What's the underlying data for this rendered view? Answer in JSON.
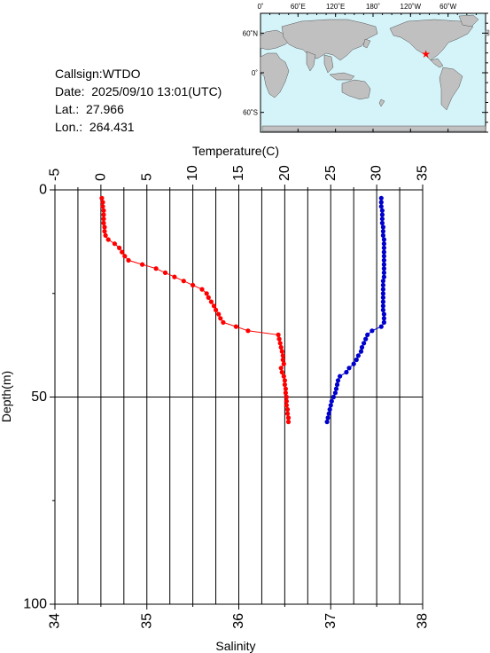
{
  "info": {
    "callsign_label": "Callsign:",
    "callsign": "WTDO",
    "date_label": "Date:",
    "date": "2025/09/10 13:01(UTC)",
    "lat_label": "Lat.:",
    "lat": "27.966",
    "lon_label": "Lon.:",
    "lon": "264.431"
  },
  "map": {
    "lon_ticks": [
      "0˚",
      "60˚E",
      "120˚E",
      "180˚",
      "120˚W",
      "60˚W"
    ],
    "lat_ticks": [
      "60˚N",
      "0˚",
      "60˚S"
    ],
    "ocean_color": "#d4f4fa",
    "land_color": "#c0c0c0",
    "marker_color": "#ff0000",
    "marker_icon": "star-icon",
    "marker_lon": 264.431,
    "marker_lat": 27.966
  },
  "chart_data": {
    "type": "line",
    "top_axis_label": "Temperature(C)",
    "bottom_axis_label": "Salinity",
    "left_axis_label": "Depth(m)",
    "temperature_ticks": [
      "-5",
      "0",
      "5",
      "10",
      "15",
      "20",
      "25",
      "30",
      "35"
    ],
    "salinity_ticks": [
      "34",
      "35",
      "36",
      "37",
      "38"
    ],
    "depth_ticks": [
      "0",
      "50",
      "100"
    ],
    "temperature_range": [
      -5,
      35
    ],
    "salinity_range": [
      34,
      38
    ],
    "depth_range": [
      0,
      100
    ],
    "grid": true,
    "series": [
      {
        "color": "#ff0000",
        "x_axis": "temperature",
        "points": [
          [
            0.1,
            2
          ],
          [
            0.2,
            3
          ],
          [
            0.2,
            4
          ],
          [
            0.3,
            5
          ],
          [
            0.3,
            6
          ],
          [
            0.3,
            7
          ],
          [
            0.3,
            8
          ],
          [
            0.4,
            9
          ],
          [
            0.4,
            10
          ],
          [
            0.5,
            11
          ],
          [
            0.8,
            12
          ],
          [
            1.5,
            13
          ],
          [
            2.0,
            14
          ],
          [
            2.3,
            15
          ],
          [
            2.6,
            16
          ],
          [
            3.0,
            17
          ],
          [
            4.5,
            18
          ],
          [
            6.0,
            19
          ],
          [
            7.0,
            20
          ],
          [
            8.0,
            21
          ],
          [
            9.0,
            22
          ],
          [
            10.0,
            23
          ],
          [
            11.0,
            24
          ],
          [
            11.5,
            25
          ],
          [
            11.7,
            26
          ],
          [
            12.0,
            27
          ],
          [
            12.3,
            28
          ],
          [
            12.5,
            29
          ],
          [
            12.8,
            30
          ],
          [
            13.0,
            31
          ],
          [
            13.3,
            32
          ],
          [
            14.7,
            33
          ],
          [
            16.0,
            34
          ],
          [
            19.3,
            35
          ],
          [
            19.4,
            36
          ],
          [
            19.5,
            37
          ],
          [
            19.6,
            38
          ],
          [
            19.7,
            39
          ],
          [
            19.8,
            40
          ],
          [
            19.8,
            41
          ],
          [
            19.9,
            42
          ],
          [
            19.6,
            43
          ],
          [
            19.7,
            44
          ],
          [
            19.9,
            45
          ],
          [
            20.0,
            46
          ],
          [
            20.0,
            47
          ],
          [
            20.1,
            48
          ],
          [
            20.1,
            49
          ],
          [
            20.2,
            50
          ],
          [
            20.2,
            51
          ],
          [
            20.2,
            52
          ],
          [
            20.3,
            53
          ],
          [
            20.3,
            54
          ],
          [
            20.4,
            55
          ],
          [
            20.4,
            56
          ]
        ]
      },
      {
        "color": "#0000cc",
        "x_axis": "salinity",
        "points": [
          [
            37.55,
            2
          ],
          [
            37.55,
            3
          ],
          [
            37.55,
            4
          ],
          [
            37.56,
            5
          ],
          [
            37.56,
            6
          ],
          [
            37.56,
            7
          ],
          [
            37.56,
            8
          ],
          [
            37.57,
            9
          ],
          [
            37.57,
            10
          ],
          [
            37.57,
            11
          ],
          [
            37.58,
            12
          ],
          [
            37.58,
            13
          ],
          [
            37.58,
            14
          ],
          [
            37.58,
            15
          ],
          [
            37.58,
            16
          ],
          [
            37.58,
            17
          ],
          [
            37.58,
            18
          ],
          [
            37.58,
            19
          ],
          [
            37.58,
            20
          ],
          [
            37.58,
            21
          ],
          [
            37.57,
            22
          ],
          [
            37.57,
            23
          ],
          [
            37.57,
            24
          ],
          [
            37.57,
            25
          ],
          [
            37.57,
            26
          ],
          [
            37.57,
            27
          ],
          [
            37.57,
            28
          ],
          [
            37.57,
            29
          ],
          [
            37.58,
            30
          ],
          [
            37.58,
            31
          ],
          [
            37.58,
            32
          ],
          [
            37.55,
            33
          ],
          [
            37.45,
            34
          ],
          [
            37.4,
            35
          ],
          [
            37.38,
            36
          ],
          [
            37.36,
            37
          ],
          [
            37.34,
            38
          ],
          [
            37.33,
            39
          ],
          [
            37.3,
            40
          ],
          [
            37.28,
            41
          ],
          [
            37.25,
            42
          ],
          [
            37.2,
            43
          ],
          [
            37.17,
            44
          ],
          [
            37.1,
            45
          ],
          [
            37.08,
            46
          ],
          [
            37.07,
            47
          ],
          [
            37.06,
            48
          ],
          [
            37.05,
            49
          ],
          [
            37.03,
            50
          ],
          [
            37.01,
            51
          ],
          [
            37.0,
            52
          ],
          [
            36.99,
            53
          ],
          [
            36.98,
            54
          ],
          [
            36.97,
            55
          ],
          [
            36.96,
            56
          ]
        ]
      }
    ]
  }
}
